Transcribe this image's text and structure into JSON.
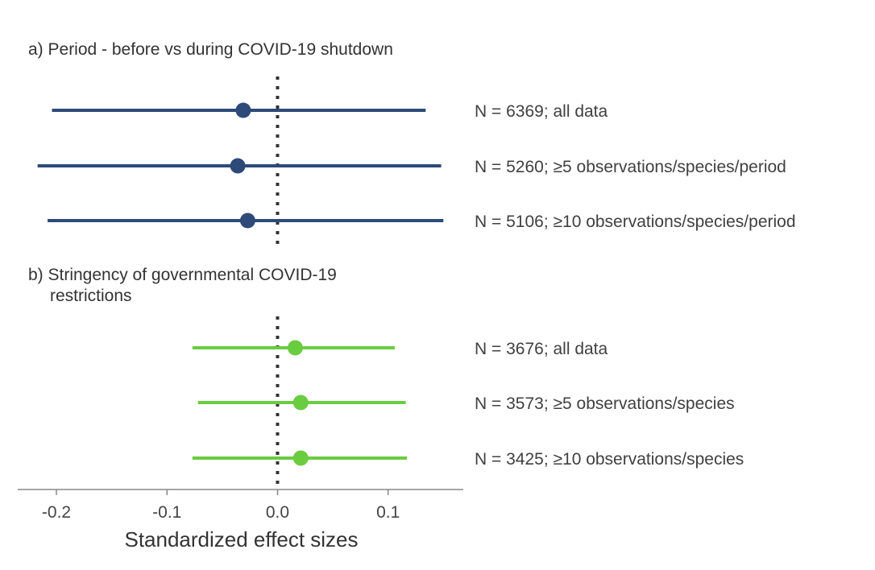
{
  "chart_data": {
    "type": "forest",
    "xlabel": "Standardized effect sizes",
    "xlim": [
      -0.235,
      0.168
    ],
    "x_ticks": [
      -0.2,
      -0.1,
      0.0,
      0.1
    ],
    "x_tick_labels": [
      "-0.2",
      "-0.1",
      "0.0",
      "0.1"
    ],
    "reference_line": 0.0,
    "panels": [
      {
        "title": "a) Period - before vs during COVID-19 shutdown",
        "color": "#2d4a78",
        "rows": [
          {
            "label": "N = 6369; all data",
            "estimate": -0.031,
            "lower": -0.204,
            "upper": 0.134
          },
          {
            "label": "N = 5260; ≥5 observations/species/period",
            "estimate": -0.036,
            "lower": -0.217,
            "upper": 0.148
          },
          {
            "label": "N = 5106; ≥10 observations/species/period",
            "estimate": -0.027,
            "lower": -0.208,
            "upper": 0.15
          }
        ]
      },
      {
        "title": "b) Stringency of governmental COVID-19",
        "title_line2": "restrictions",
        "color": "#6acc3f",
        "rows": [
          {
            "label": "N = 3676; all data",
            "estimate": 0.016,
            "lower": -0.077,
            "upper": 0.106
          },
          {
            "label": "N = 3573; ≥5 observations/species",
            "estimate": 0.021,
            "lower": -0.072,
            "upper": 0.116
          },
          {
            "label": "N = 3425; ≥10 observations/species",
            "estimate": 0.021,
            "lower": -0.077,
            "upper": 0.117
          }
        ]
      }
    ]
  }
}
